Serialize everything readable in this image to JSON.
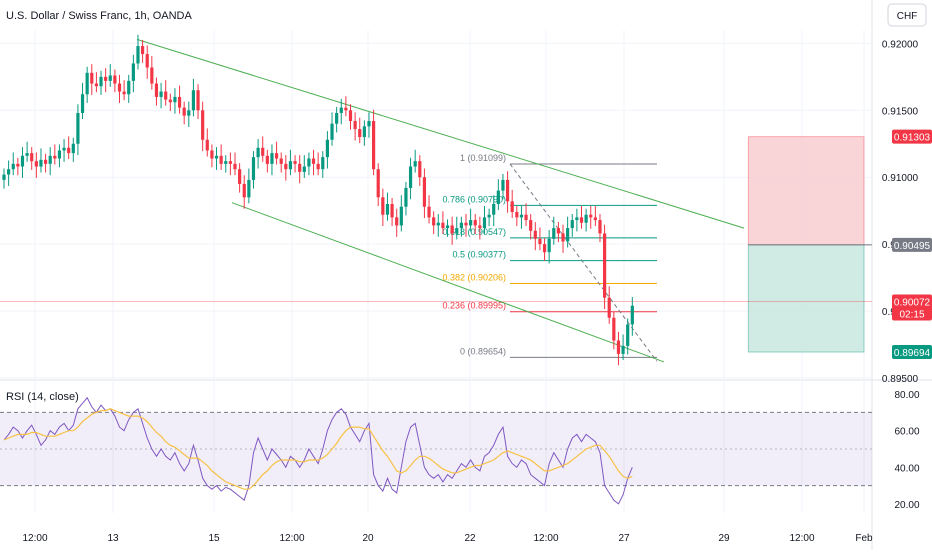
{
  "header": {
    "title": "U.S. Dollar / Swiss Franc, 1h, OANDA",
    "currency": "CHF"
  },
  "chart_data": [
    {
      "type": "candlestick",
      "title": "U.S. Dollar / Swiss Franc, 1h, OANDA",
      "ylim": [
        0.895,
        0.921
      ],
      "y_ticks": [
        {
          "value": 0.92,
          "label": "0.92000"
        },
        {
          "value": 0.915,
          "label": "0.91500"
        },
        {
          "value": 0.91,
          "label": "0.91000"
        },
        {
          "value": 0.905,
          "label": "0.90500"
        },
        {
          "value": 0.9,
          "label": "0.90000"
        },
        {
          "value": 0.895,
          "label": "0.89500"
        }
      ],
      "x_ticks": [
        "12:00",
        "13",
        "15",
        "12:00",
        "20",
        "22",
        "12:00",
        "27",
        "29",
        "12:00",
        "Feb"
      ],
      "grid": true,
      "price_series": [
        0.9102,
        0.9106,
        0.911,
        0.9108,
        0.9116,
        0.9118,
        0.9112,
        0.9108,
        0.9113,
        0.911,
        0.9116,
        0.9114,
        0.912,
        0.9122,
        0.9118,
        0.9125,
        0.9148,
        0.9162,
        0.9178,
        0.917,
        0.9168,
        0.9175,
        0.9172,
        0.9176,
        0.917,
        0.9164,
        0.9162,
        0.9172,
        0.9185,
        0.9198,
        0.9192,
        0.9182,
        0.917,
        0.916,
        0.9164,
        0.9158,
        0.9156,
        0.916,
        0.9152,
        0.9146,
        0.915,
        0.9165,
        0.915,
        0.9128,
        0.912,
        0.9114,
        0.9116,
        0.911,
        0.9112,
        0.911,
        0.9106,
        0.9095,
        0.9085,
        0.9098,
        0.9115,
        0.9122,
        0.9116,
        0.911,
        0.9118,
        0.9114,
        0.911,
        0.9106,
        0.9112,
        0.911,
        0.9104,
        0.9108,
        0.9114,
        0.911,
        0.9106,
        0.9115,
        0.9128,
        0.914,
        0.9148,
        0.9152,
        0.915,
        0.9142,
        0.9136,
        0.913,
        0.9138,
        0.9142,
        0.9106,
        0.9085,
        0.9072,
        0.908,
        0.907,
        0.9064,
        0.9078,
        0.9092,
        0.9108,
        0.9112,
        0.91,
        0.9078,
        0.907,
        0.9064,
        0.9066,
        0.9062,
        0.9064,
        0.9058,
        0.9062,
        0.9066,
        0.9064,
        0.9068,
        0.9064,
        0.9062,
        0.907,
        0.9072,
        0.908,
        0.909,
        0.9098,
        0.9082,
        0.9074,
        0.907,
        0.9072,
        0.9068,
        0.906,
        0.9054,
        0.905,
        0.9044,
        0.9054,
        0.9062,
        0.9058,
        0.9052,
        0.9062,
        0.9068,
        0.907,
        0.9066,
        0.9072,
        0.907,
        0.9068,
        0.9058,
        0.901,
        0.8995,
        0.8978,
        0.8968,
        0.8974,
        0.899,
        0.9004
      ],
      "channel": {
        "upper": [
          {
            "t": 28,
            "p": 0.9203
          },
          {
            "t": 146,
            "p": 0.9062
          }
        ],
        "lower": [
          {
            "t": 47,
            "p": 0.9081
          },
          {
            "t": 138,
            "p": 0.8962
          }
        ]
      },
      "fibonacci": {
        "t_start": 106,
        "t_end": 150,
        "levels": [
          {
            "label": "1 (0.91099)",
            "value": 0.91099,
            "color": "#787b86"
          },
          {
            "label": "0.786 (0.90790)",
            "value": 0.9079,
            "color": "#089981"
          },
          {
            "label": "0.618 (0.90547)",
            "value": 0.90547,
            "color": "#089981"
          },
          {
            "label": "0.5 (0.90377)",
            "value": 0.90377,
            "color": "#089981"
          },
          {
            "label": "0.382 (0.90206)",
            "value": 0.90206,
            "color": "#f2a900"
          },
          {
            "label": "0.236 (0.89995)",
            "value": 0.89995,
            "color": "#f23645"
          },
          {
            "label": "0 (0.89654)",
            "value": 0.89654,
            "color": "#787b86"
          }
        ]
      },
      "position": {
        "t_start": 149,
        "t_end": 183,
        "entry": 0.90495,
        "stop": 0.91303,
        "target": 0.89694
      },
      "current_price": 0.90072,
      "price_labels": [
        {
          "value": 0.91303,
          "label": "0.91303",
          "bg": "#f23645"
        },
        {
          "value": 0.90495,
          "label": "0.90495",
          "bg": "#787b86"
        },
        {
          "value": 0.90072,
          "label": "0.90072",
          "sublabel": "02:15",
          "bg": "#f23645"
        },
        {
          "value": 0.89694,
          "label": "0.89694",
          "bg": "#089981"
        }
      ],
      "colors": {
        "up": "#089981",
        "down": "#f23645",
        "channel": "#4caf50",
        "position_stop": "#f8c7cb",
        "position_target": "#c8e8de"
      }
    },
    {
      "type": "line",
      "title": "RSI (14, close)",
      "ylim": [
        15,
        85
      ],
      "y_ticks": [
        {
          "value": 80,
          "label": "80.00"
        },
        {
          "value": 60,
          "label": "60.00"
        },
        {
          "value": 40,
          "label": "40.00"
        },
        {
          "value": 20,
          "label": "20.00"
        }
      ],
      "bands": {
        "upper": 70,
        "middle": 50,
        "lower": 30
      },
      "series": [
        {
          "values": [
            55,
            58,
            62,
            60,
            56,
            60,
            63,
            58,
            52,
            55,
            60,
            58,
            62,
            64,
            60,
            63,
            72,
            75,
            78,
            73,
            70,
            74,
            71,
            72,
            68,
            62,
            60,
            66,
            70,
            72,
            64,
            56,
            50,
            46,
            50,
            46,
            44,
            48,
            42,
            38,
            42,
            52,
            44,
            34,
            30,
            28,
            30,
            27,
            29,
            28,
            26,
            24,
            22,
            30,
            48,
            56,
            50,
            44,
            50,
            47,
            44,
            40,
            46,
            44,
            40,
            44,
            50,
            46,
            42,
            50,
            60,
            66,
            70,
            72,
            69,
            62,
            58,
            54,
            60,
            64,
            36,
            30,
            27,
            34,
            28,
            26,
            40,
            54,
            62,
            64,
            52,
            40,
            36,
            34,
            36,
            32,
            36,
            34,
            38,
            42,
            40,
            44,
            40,
            38,
            46,
            48,
            52,
            58,
            62,
            46,
            42,
            40,
            44,
            42,
            36,
            34,
            32,
            30,
            42,
            48,
            44,
            40,
            50,
            56,
            58,
            54,
            58,
            56,
            54,
            48,
            30,
            26,
            22,
            20,
            25,
            34,
            40
          ]
        },
        {
          "values": [
            55,
            56,
            57,
            58,
            58,
            58,
            59,
            59,
            58,
            57,
            57,
            57,
            58,
            59,
            60,
            60,
            62,
            65,
            67,
            69,
            70,
            71,
            71,
            72,
            71,
            70,
            69,
            68,
            68,
            68,
            67,
            65,
            62,
            59,
            57,
            54,
            52,
            51,
            49,
            47,
            45,
            45,
            45,
            43,
            41,
            38,
            36,
            34,
            32,
            31,
            30,
            29,
            28,
            28,
            30,
            33,
            36,
            38,
            41,
            43,
            44,
            44,
            44,
            44,
            43,
            43,
            44,
            44,
            44,
            45,
            47,
            50,
            53,
            57,
            60,
            62,
            62,
            62,
            61,
            61,
            57,
            53,
            49,
            46,
            42,
            38,
            37,
            38,
            41,
            44,
            46,
            46,
            45,
            43,
            41,
            39,
            38,
            37,
            37,
            38,
            39,
            40,
            41,
            41,
            42,
            43,
            44,
            46,
            48,
            49,
            48,
            47,
            46,
            45,
            44,
            42,
            40,
            38,
            38,
            39,
            40,
            41,
            42,
            44,
            46,
            48,
            50,
            51,
            52,
            52,
            49,
            46,
            42,
            38,
            35,
            34,
            35
          ]
        }
      ]
    }
  ]
}
